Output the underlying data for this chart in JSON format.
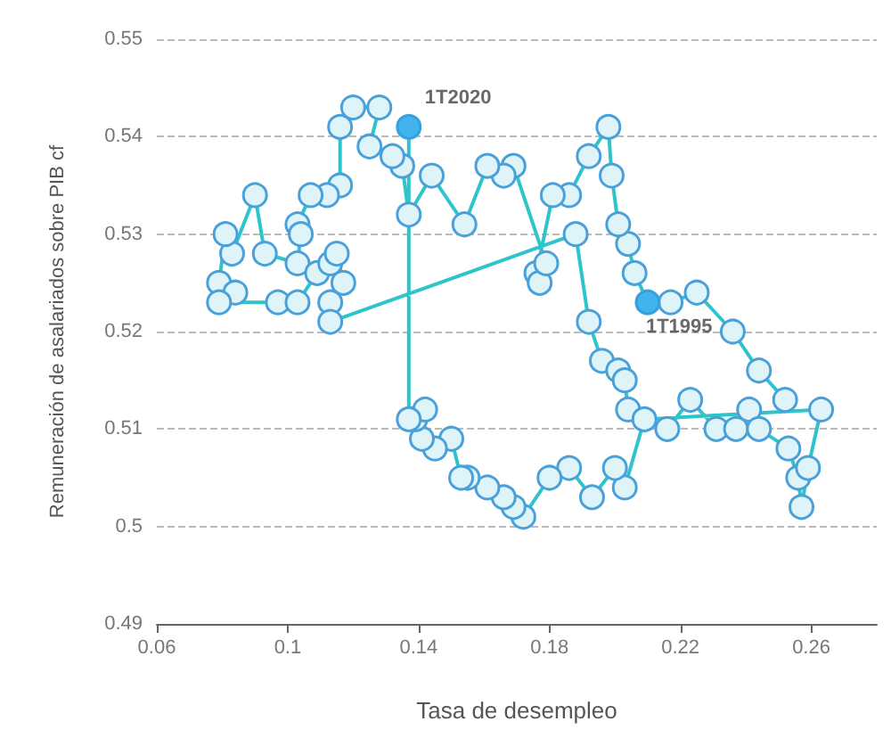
{
  "chart_data": {
    "type": "line",
    "xlabel": "Tasa de desempleo",
    "ylabel": "Remuneración de asalariados sobre PIB cf",
    "xlim": [
      0.06,
      0.28
    ],
    "xticks": [
      0.06,
      0.1,
      0.14,
      0.18,
      0.22,
      0.26
    ],
    "ylim": [
      0.49,
      0.55
    ],
    "yticks": [
      0.49,
      0.5,
      0.51,
      0.52,
      0.53,
      0.54,
      0.55
    ],
    "grid": "y",
    "marker": "circle",
    "line_style": "solid",
    "series": [
      {
        "color": "#2ec4cc",
        "x": [
          0.252,
          0.244,
          0.236,
          0.225,
          0.217,
          0.21,
          0.206,
          0.204,
          0.201,
          0.199,
          0.198,
          0.192,
          0.186,
          0.181,
          0.176,
          0.177,
          0.179,
          0.169,
          0.166,
          0.161,
          0.154,
          0.144,
          0.137,
          0.135,
          0.132,
          0.125,
          0.128,
          0.12,
          0.116,
          0.116,
          0.112,
          0.107,
          0.103,
          0.104,
          0.103,
          0.093,
          0.09,
          0.083,
          0.081,
          0.079,
          0.084,
          0.079,
          0.097,
          0.103,
          0.109,
          0.113,
          0.115,
          0.117,
          0.113,
          0.113,
          0.188,
          0.192,
          0.196,
          0.201,
          0.203,
          0.204,
          0.216,
          0.223,
          0.231,
          0.237,
          0.241,
          0.244,
          0.253,
          0.256,
          0.257,
          0.259,
          0.263,
          0.209,
          0.203,
          0.2,
          0.193,
          0.186,
          0.18,
          0.172,
          0.169,
          0.166,
          0.161,
          0.155,
          0.153,
          0.15,
          0.145,
          0.141,
          0.139,
          0.142,
          0.137,
          0.137
        ],
        "values": [
          0.513,
          0.516,
          0.52,
          0.524,
          0.523,
          0.523,
          0.526,
          0.529,
          0.531,
          0.536,
          0.541,
          0.538,
          0.534,
          0.534,
          0.526,
          0.525,
          0.527,
          0.537,
          0.536,
          0.537,
          0.531,
          0.536,
          0.532,
          0.537,
          0.538,
          0.539,
          0.543,
          0.543,
          0.541,
          0.535,
          0.534,
          0.534,
          0.531,
          0.53,
          0.527,
          0.528,
          0.534,
          0.528,
          0.53,
          0.525,
          0.524,
          0.523,
          0.523,
          0.523,
          0.526,
          0.527,
          0.528,
          0.525,
          0.523,
          0.521,
          0.53,
          0.521,
          0.517,
          0.516,
          0.515,
          0.512,
          0.51,
          0.513,
          0.51,
          0.51,
          0.512,
          0.51,
          0.508,
          0.505,
          0.502,
          0.506,
          0.512,
          0.511,
          0.504,
          0.506,
          0.503,
          0.506,
          0.505,
          0.501,
          0.502,
          0.503,
          0.504,
          0.505,
          0.505,
          0.509,
          0.508,
          0.509,
          0.511,
          0.512,
          0.511,
          0.541
        ]
      },
      {
        "type": "scatter",
        "color": "#1aa3e8",
        "x": [
          0.137,
          0.21
        ],
        "values": [
          0.541,
          0.523
        ]
      }
    ],
    "annotations": [
      {
        "text": "1T2020",
        "x": 0.137,
        "y": 0.541
      },
      {
        "text": "1T1995",
        "x": 0.21,
        "y": 0.523
      }
    ]
  }
}
